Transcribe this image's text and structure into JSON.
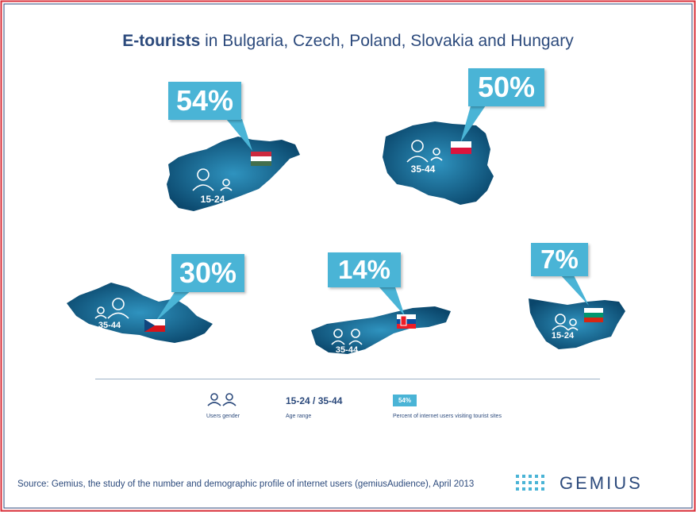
{
  "title": {
    "strong": "E-tourists",
    "rest": " in Bulgaria, Czech, Poland, Slovakia and Hungary"
  },
  "chart_data": {
    "type": "bar",
    "title": "E-tourists in Bulgaria, Czech, Poland, Slovakia and Hungary",
    "categories": [
      "Hungary",
      "Poland",
      "Czech",
      "Slovakia",
      "Bulgaria"
    ],
    "values": [
      54,
      50,
      30,
      14,
      7
    ],
    "value_labels": [
      "54%",
      "50%",
      "30%",
      "14%",
      "7%"
    ],
    "age_ranges": [
      "15-24",
      "35-44",
      "35-44",
      "35-44",
      "15-24"
    ],
    "unit": "%"
  },
  "legend": {
    "gender_label": "Users gender",
    "age_value": "15-24 / 35-44",
    "age_label": "Age range",
    "pct_value": "54%",
    "pct_label": "Percent of internet users visiting tourist sites"
  },
  "source": "Source: Gemius, the study of the number and demographic profile of internet users (gemiusAudience), April 2013",
  "brand": "GEMIUS",
  "colors": {
    "accent": "#4ab4d6",
    "map_dark": "#0b4a70",
    "map_light": "#2a88b3",
    "text": "#2c4a7c",
    "border_red": "#d9303a",
    "border_blue": "#2c4a7c"
  }
}
